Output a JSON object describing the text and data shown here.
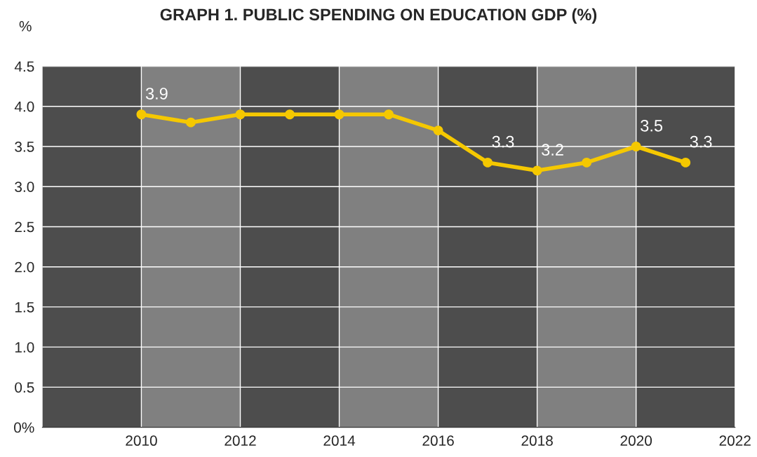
{
  "chart_data": {
    "type": "line",
    "title": "GRAPH 1. PUBLIC SPENDING ON EDUCATION GDP (%)",
    "ylabel": "%",
    "x": [
      2010,
      2011,
      2012,
      2013,
      2014,
      2015,
      2016,
      2017,
      2018,
      2019,
      2020,
      2021
    ],
    "series": [
      {
        "color": "#f5c800",
        "values": [
          3.9,
          3.8,
          3.9,
          3.9,
          3.9,
          3.9,
          3.7,
          3.3,
          3.2,
          3.3,
          3.5,
          3.3
        ],
        "value_labels": [
          "3.9",
          null,
          null,
          null,
          null,
          null,
          null,
          "3.3",
          "3.2",
          null,
          "3.5",
          "3.3"
        ]
      }
    ],
    "xlim": [
      2008,
      2022
    ],
    "xticks": [
      2010,
      2012,
      2014,
      2016,
      2018,
      2020,
      2022
    ],
    "ylim": [
      0,
      4.5
    ],
    "yticks": [
      {
        "value": 0,
        "label": "0%"
      },
      0.5,
      {
        "value": 1,
        "label": "1.0"
      },
      1.5,
      {
        "value": 2,
        "label": "2.0"
      },
      2.5,
      {
        "value": 3,
        "label": "3.0"
      },
      3.5,
      {
        "value": 4,
        "label": "4.0"
      },
      4.5
    ],
    "bands": [
      {
        "axis": "x",
        "from": 2008,
        "to": 2010,
        "color": "#4d4d4d"
      },
      {
        "axis": "x",
        "from": 2010,
        "to": 2012,
        "color": "#808080"
      },
      {
        "axis": "x",
        "from": 2012,
        "to": 2014,
        "color": "#4d4d4d"
      },
      {
        "axis": "x",
        "from": 2014,
        "to": 2016,
        "color": "#808080"
      },
      {
        "axis": "x",
        "from": 2016,
        "to": 2018,
        "color": "#4d4d4d"
      },
      {
        "axis": "x",
        "from": 2018,
        "to": 2020,
        "color": "#808080"
      },
      {
        "axis": "x",
        "from": 2020,
        "to": 2022,
        "color": "#4d4d4d"
      }
    ],
    "grid": true,
    "marker": "circle",
    "line_style": "solid",
    "legend": false
  }
}
